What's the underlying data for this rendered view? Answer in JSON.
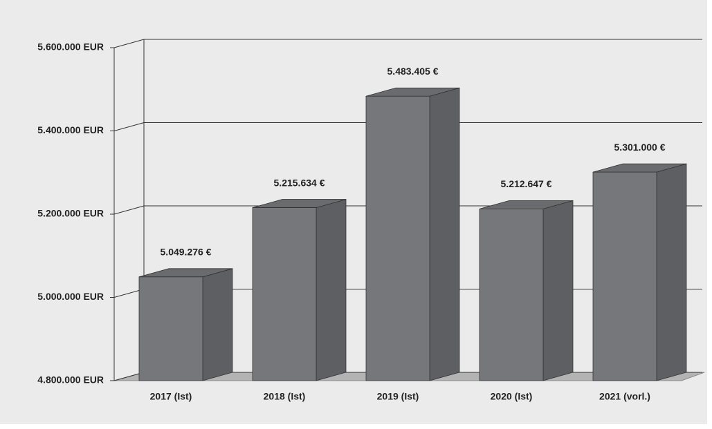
{
  "chart_data": {
    "type": "bar3d",
    "categories": [
      "2017 (Ist)",
      "2018 (Ist)",
      "2019 (Ist)",
      "2020 (Ist)",
      "2021 (vorl.)"
    ],
    "values": [
      5049276,
      5215634,
      5483405,
      5212647,
      5301000
    ],
    "value_labels": [
      "5.049.276 €",
      "5.215.634 €",
      "5.483.405 €",
      "5.212.647 €",
      "5.301.000 €"
    ],
    "color": "#76777b",
    "ylim": [
      4800000,
      5600000
    ],
    "yticks": [
      {
        "value": 4800000,
        "label": "4.800.000 EUR"
      },
      {
        "value": 5000000,
        "label": "5.000.000 EUR"
      },
      {
        "value": 5200000,
        "label": "5.200.000 EUR"
      },
      {
        "value": 5400000,
        "label": "5.400.000 EUR"
      },
      {
        "value": 5600000,
        "label": "5.600.000 EUR"
      }
    ],
    "grid": true
  }
}
